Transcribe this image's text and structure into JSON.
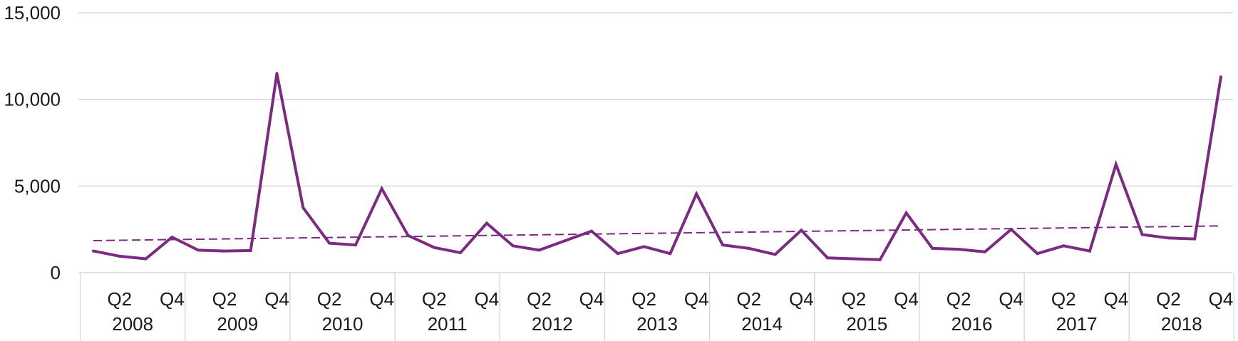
{
  "chart_data": {
    "type": "line",
    "title": "",
    "xlabel": "",
    "ylabel": "",
    "ylim": [
      0,
      15000
    ],
    "yticks": [
      0,
      5000,
      10000,
      15000
    ],
    "ytick_labels": [
      "0",
      "5,000",
      "10,000",
      "15,000"
    ],
    "grid": "horizontal",
    "legend": "none",
    "years": [
      "2008",
      "2009",
      "2010",
      "2011",
      "2012",
      "2013",
      "2014",
      "2015",
      "2016",
      "2017",
      "2018"
    ],
    "quarters_shown": [
      "Q2",
      "Q4"
    ],
    "x": [
      "2008 Q1",
      "2008 Q2",
      "2008 Q3",
      "2008 Q4",
      "2009 Q1",
      "2009 Q2",
      "2009 Q3",
      "2009 Q4",
      "2010 Q1",
      "2010 Q2",
      "2010 Q3",
      "2010 Q4",
      "2011 Q1",
      "2011 Q2",
      "2011 Q3",
      "2011 Q4",
      "2012 Q1",
      "2012 Q2",
      "2012 Q3",
      "2012 Q4",
      "2013 Q1",
      "2013 Q2",
      "2013 Q3",
      "2013 Q4",
      "2014 Q1",
      "2014 Q2",
      "2014 Q3",
      "2014 Q4",
      "2015 Q1",
      "2015 Q2",
      "2015 Q3",
      "2015 Q4",
      "2016 Q1",
      "2016 Q2",
      "2016 Q3",
      "2016 Q4",
      "2017 Q1",
      "2017 Q2",
      "2017 Q3",
      "2017 Q4",
      "2018 Q1",
      "2018 Q2",
      "2018 Q3",
      "2018 Q4"
    ],
    "series": [
      {
        "values": [
          1250,
          950,
          800,
          2050,
          1300,
          1250,
          1280,
          11500,
          3750,
          1700,
          1600,
          4850,
          2150,
          1450,
          1150,
          2850,
          1550,
          1300,
          1850,
          2400,
          1100,
          1500,
          1100,
          4550,
          1600,
          1400,
          1050,
          2450,
          850,
          800,
          750,
          3450,
          1400,
          1350,
          1200,
          2500,
          1100,
          1550,
          1250,
          6250,
          2200,
          2000,
          1950,
          11300
        ],
        "color": "#7b2c82"
      }
    ],
    "trendline": {
      "type": "linear",
      "style": "dashed",
      "color": "#7b2c82",
      "start_value": 1850,
      "end_value": 2700
    },
    "colors": {
      "gridline": "#d9d9d9",
      "axis": "#d9d9d9",
      "text": "#1a1a1a"
    }
  }
}
